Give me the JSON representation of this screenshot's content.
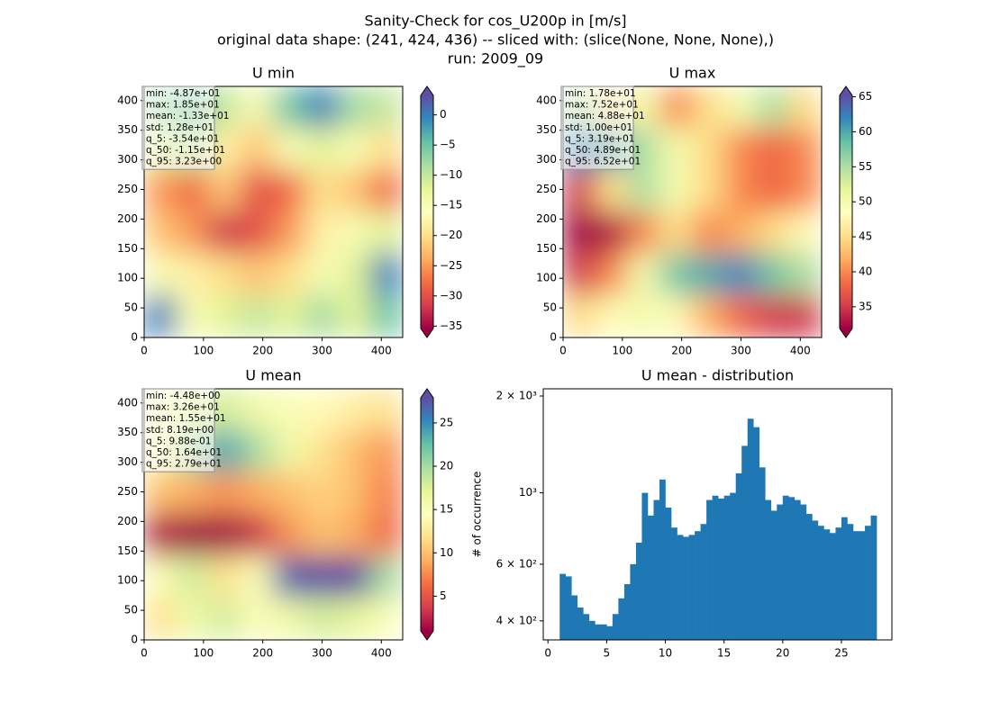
{
  "figure": {
    "title_lines": [
      "Sanity-Check for cos_U200p in [m/s]",
      "original data shape: (241, 424, 436) -- sliced with: (slice(None, None, None),)",
      "run: 2009_09"
    ]
  },
  "colormap": {
    "name": "Spectral",
    "colors": [
      "#9e0142",
      "#d53e4f",
      "#f46d43",
      "#fdae61",
      "#fee08b",
      "#ffffbf",
      "#e6f598",
      "#abdda4",
      "#66c2a5",
      "#3288bd",
      "#5e4fa2"
    ]
  },
  "chart_data": [
    {
      "type": "heatmap",
      "title": "U min",
      "xlim": [
        0,
        436
      ],
      "ylim": [
        0,
        424
      ],
      "xticks": [
        0,
        100,
        200,
        300,
        400
      ],
      "yticks": [
        0,
        50,
        100,
        150,
        200,
        250,
        300,
        350,
        400
      ],
      "clim": [
        -35.4,
        3.23
      ],
      "cticks": [
        {
          "value": -35,
          "label": "−35"
        },
        {
          "value": -30,
          "label": "−30"
        },
        {
          "value": -25,
          "label": "−25"
        },
        {
          "value": -20,
          "label": "−20"
        },
        {
          "value": -15,
          "label": "−15"
        },
        {
          "value": -10,
          "label": "−10"
        },
        {
          "value": -5,
          "label": "−5"
        },
        0
      ],
      "stats": [
        "min: -4.87e+01",
        "max: 1.85e+01",
        "mean: -1.33e+01",
        "std: 1.28e+01",
        "q_5: -3.54e+01",
        "q_50: -1.15e+01",
        "q_95: 3.23e+00"
      ],
      "z": [
        [
          -8,
          -5,
          -10,
          -15,
          -5,
          0,
          -8,
          -10
        ],
        [
          -12,
          -10,
          -18,
          -22,
          -15,
          -12,
          -15,
          -20
        ],
        [
          -25,
          -28,
          -22,
          -30,
          -28,
          -20,
          -22,
          -28
        ],
        [
          -22,
          -25,
          -32,
          -30,
          -25,
          -18,
          -15,
          -12
        ],
        [
          -15,
          -18,
          -20,
          -22,
          -20,
          -15,
          -12,
          0
        ],
        [
          0,
          -15,
          -12,
          -10,
          -12,
          -8,
          -12,
          -5
        ]
      ]
    },
    {
      "type": "heatmap",
      "title": "U max",
      "xlim": [
        0,
        436
      ],
      "ylim": [
        0,
        424
      ],
      "xticks": [
        0,
        100,
        200,
        300,
        400
      ],
      "yticks": [
        0,
        50,
        100,
        150,
        200,
        250,
        300,
        350,
        400
      ],
      "clim": [
        31.9,
        65.2
      ],
      "cticks": [
        35,
        40,
        45,
        50,
        55,
        60,
        65
      ],
      "stats": [
        "min: 1.78e+01",
        "max: 7.52e+01",
        "mean: 4.88e+01",
        "std: 1.00e+01",
        "q_5: 3.19e+01",
        "q_50: 4.89e+01",
        "q_95: 6.52e+01"
      ],
      "z": [
        [
          55,
          45,
          50,
          40,
          45,
          50,
          55,
          45
        ],
        [
          62,
          60,
          55,
          50,
          45,
          40,
          38,
          40
        ],
        [
          35,
          45,
          55,
          50,
          45,
          40,
          38,
          40
        ],
        [
          32,
          33,
          40,
          45,
          40,
          42,
          45,
          48
        ],
        [
          35,
          40,
          50,
          58,
          60,
          62,
          58,
          55
        ],
        [
          45,
          48,
          50,
          48,
          42,
          38,
          35,
          35
        ]
      ]
    },
    {
      "type": "heatmap",
      "title": "U mean",
      "xlim": [
        0,
        436
      ],
      "ylim": [
        0,
        424
      ],
      "xticks": [
        0,
        100,
        200,
        300,
        400
      ],
      "yticks": [
        0,
        50,
        100,
        150,
        200,
        250,
        300,
        350,
        400
      ],
      "clim": [
        0.988,
        27.9
      ],
      "cticks": [
        5,
        10,
        15,
        20,
        25
      ],
      "stats": [
        "min: -4.48e+00",
        "max: 3.26e+01",
        "mean: 1.55e+01",
        "std: 8.19e+00",
        "q_5: 9.88e-01",
        "q_50: 1.64e+01",
        "q_95: 2.79e+01"
      ],
      "z": [
        [
          15,
          17,
          18,
          16,
          15,
          14,
          13,
          12
        ],
        [
          14,
          20,
          24,
          20,
          16,
          12,
          10,
          8
        ],
        [
          10,
          9,
          8,
          9,
          10,
          11,
          10,
          7
        ],
        [
          2,
          1,
          1,
          3,
          8,
          10,
          9,
          6
        ],
        [
          15,
          18,
          12,
          15,
          27,
          28,
          28,
          20
        ],
        [
          12,
          16,
          18,
          15,
          16,
          18,
          17,
          15
        ]
      ]
    },
    {
      "type": "histogram",
      "title": "U mean - distribution",
      "ylabel": "# of occurrence",
      "color": "#1f77b4",
      "log_scale": true,
      "xlim": [
        -0.4,
        29.3
      ],
      "xticks": [
        0,
        5,
        10,
        15,
        20,
        25
      ],
      "ylim": [
        349,
        2106
      ],
      "yticks": [
        {
          "value": 400,
          "label": "4 × 10²"
        },
        {
          "value": 600,
          "label": "6 × 10²"
        },
        {
          "value": 1000,
          "label": "10³"
        },
        {
          "value": 2000,
          "label": "2 × 10³"
        }
      ],
      "bins": [
        1.0,
        1.5,
        2.0,
        2.5,
        3.0,
        3.5,
        4.0,
        4.5,
        5.0,
        5.5,
        6.0,
        6.5,
        7.0,
        7.5,
        8.0,
        8.5,
        9.0,
        9.5,
        10.0,
        10.5,
        11.0,
        11.5,
        12.0,
        12.5,
        13.0,
        13.5,
        14.0,
        14.5,
        15.0,
        15.5,
        16.0,
        16.5,
        17.0,
        17.5,
        18.0,
        18.5,
        19.0,
        19.5,
        20.0,
        20.5,
        21.0,
        21.5,
        22.0,
        22.5,
        23.0,
        23.5,
        24.0,
        24.5,
        25.0,
        25.5,
        26.0,
        26.5,
        27.0,
        27.5,
        28.0
      ],
      "values": [
        560,
        550,
        480,
        440,
        420,
        400,
        390,
        390,
        385,
        420,
        470,
        520,
        600,
        700,
        1000,
        850,
        950,
        1100,
        900,
        780,
        740,
        730,
        740,
        760,
        800,
        950,
        980,
        960,
        980,
        1000,
        1150,
        1400,
        1700,
        1600,
        1200,
        950,
        880,
        920,
        980,
        970,
        950,
        920,
        860,
        820,
        790,
        770,
        750,
        780,
        840,
        800,
        760,
        760,
        790,
        850
      ]
    }
  ]
}
